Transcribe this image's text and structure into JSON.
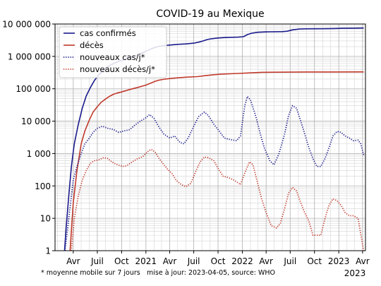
{
  "chart_data": {
    "type": "line",
    "title": "COVID-19 au Mexique",
    "xlabel": "",
    "ylabel": "",
    "yscale": "log",
    "ylim": [
      1,
      10000000
    ],
    "xlim": [
      "2020-01-23",
      "2023-04-12"
    ],
    "grid": true,
    "legend_position": "top-left",
    "x_ticks": [
      {
        "date": "2020-04-01",
        "label": "Avr"
      },
      {
        "date": "2020-07-01",
        "label": "Juil"
      },
      {
        "date": "2020-10-01",
        "label": "Oct"
      },
      {
        "date": "2021-01-01",
        "label": "2021"
      },
      {
        "date": "2021-04-01",
        "label": "Avr"
      },
      {
        "date": "2021-07-01",
        "label": "Juil"
      },
      {
        "date": "2021-10-01",
        "label": "Oct"
      },
      {
        "date": "2022-01-01",
        "label": "2022"
      },
      {
        "date": "2022-04-01",
        "label": "Avr"
      },
      {
        "date": "2022-07-01",
        "label": "Juil"
      },
      {
        "date": "2022-10-01",
        "label": "Oct"
      },
      {
        "date": "2023-01-01",
        "label": "2023"
      },
      {
        "date": "2023-04-01",
        "label": "Avr"
      }
    ],
    "x_corner_label": "2023",
    "y_ticks": [
      {
        "value": 1,
        "label": "1"
      },
      {
        "value": 10,
        "label": "10"
      },
      {
        "value": 100,
        "label": "100"
      },
      {
        "value": 1000,
        "label": "1 000"
      },
      {
        "value": 10000,
        "label": "10 000"
      },
      {
        "value": 100000,
        "label": "100 000"
      },
      {
        "value": 1000000,
        "label": "1 000 000"
      },
      {
        "value": 10000000,
        "label": "10 000 000"
      }
    ],
    "footnote_left": "* moyenne mobile sur 7 jours",
    "footnote_right": "mise à jour: 2023-04-05, source: WHO",
    "series": [
      {
        "name": "cas confirmés",
        "color": "#1a1a8c",
        "style": "solid",
        "points": [
          [
            "2020-02-28",
            1
          ],
          [
            "2020-03-05",
            5
          ],
          [
            "2020-03-15",
            50
          ],
          [
            "2020-03-25",
            400
          ],
          [
            "2020-04-05",
            2000
          ],
          [
            "2020-04-20",
            8000
          ],
          [
            "2020-05-05",
            25000
          ],
          [
            "2020-05-20",
            60000
          ],
          [
            "2020-06-05",
            110000
          ],
          [
            "2020-06-20",
            180000
          ],
          [
            "2020-07-05",
            260000
          ],
          [
            "2020-07-20",
            350000
          ],
          [
            "2020-08-05",
            450000
          ],
          [
            "2020-08-20",
            540000
          ],
          [
            "2020-09-05",
            630000
          ],
          [
            "2020-09-20",
            700000
          ],
          [
            "2020-10-05",
            770000
          ],
          [
            "2020-10-20",
            860000
          ],
          [
            "2020-11-05",
            950000
          ],
          [
            "2020-11-20",
            1020000
          ],
          [
            "2020-12-05",
            1150000
          ],
          [
            "2020-12-20",
            1300000
          ],
          [
            "2021-01-05",
            1500000
          ],
          [
            "2021-01-20",
            1700000
          ],
          [
            "2021-02-05",
            1900000
          ],
          [
            "2021-02-20",
            2050000
          ],
          [
            "2021-03-05",
            2130000
          ],
          [
            "2021-04-01",
            2240000
          ],
          [
            "2021-05-01",
            2360000
          ],
          [
            "2021-06-01",
            2430000
          ],
          [
            "2021-07-01",
            2560000
          ],
          [
            "2021-07-20",
            2750000
          ],
          [
            "2021-08-05",
            3000000
          ],
          [
            "2021-08-20",
            3300000
          ],
          [
            "2021-09-05",
            3500000
          ],
          [
            "2021-10-01",
            3700000
          ],
          [
            "2021-11-01",
            3830000
          ],
          [
            "2021-12-15",
            3930000
          ],
          [
            "2022-01-05",
            4050000
          ],
          [
            "2022-01-20",
            4700000
          ],
          [
            "2022-02-05",
            5200000
          ],
          [
            "2022-03-01",
            5550000
          ],
          [
            "2022-04-01",
            5700000
          ],
          [
            "2022-06-01",
            5800000
          ],
          [
            "2022-06-20",
            6000000
          ],
          [
            "2022-07-10",
            6600000
          ],
          [
            "2022-08-05",
            7000000
          ],
          [
            "2022-09-01",
            7100000
          ],
          [
            "2022-11-01",
            7150000
          ],
          [
            "2022-12-15",
            7250000
          ],
          [
            "2023-01-15",
            7350000
          ],
          [
            "2023-03-01",
            7450000
          ],
          [
            "2023-04-05",
            7500000
          ]
        ]
      },
      {
        "name": "décès",
        "color": "#c0392b",
        "style": "solid",
        "points": [
          [
            "2020-03-20",
            1
          ],
          [
            "2020-04-01",
            30
          ],
          [
            "2020-04-15",
            300
          ],
          [
            "2020-05-01",
            2000
          ],
          [
            "2020-05-15",
            5000
          ],
          [
            "2020-06-01",
            11000
          ],
          [
            "2020-06-15",
            19000
          ],
          [
            "2020-07-01",
            28000
          ],
          [
            "2020-07-15",
            38000
          ],
          [
            "2020-08-01",
            48000
          ],
          [
            "2020-08-15",
            58000
          ],
          [
            "2020-09-01",
            68000
          ],
          [
            "2020-09-15",
            74000
          ],
          [
            "2020-10-01",
            80000
          ],
          [
            "2020-11-01",
            95000
          ],
          [
            "2020-12-01",
            110000
          ],
          [
            "2021-01-01",
            130000
          ],
          [
            "2021-01-20",
            150000
          ],
          [
            "2021-02-05",
            170000
          ],
          [
            "2021-02-20",
            185000
          ],
          [
            "2021-03-15",
            200000
          ],
          [
            "2021-04-15",
            213000
          ],
          [
            "2021-06-01",
            228000
          ],
          [
            "2021-07-15",
            237000
          ],
          [
            "2021-08-15",
            255000
          ],
          [
            "2021-09-15",
            272000
          ],
          [
            "2021-10-15",
            285000
          ],
          [
            "2021-12-15",
            298000
          ],
          [
            "2022-02-01",
            310000
          ],
          [
            "2022-03-15",
            322000
          ],
          [
            "2022-06-01",
            325000
          ],
          [
            "2022-09-01",
            330000
          ],
          [
            "2022-12-01",
            331000
          ],
          [
            "2023-04-05",
            333000
          ]
        ]
      },
      {
        "name": "nouveaux cas/j*",
        "color": "#1a1a8c",
        "style": "dotted",
        "points": [
          [
            "2020-03-01",
            1
          ],
          [
            "2020-03-15",
            10
          ],
          [
            "2020-04-01",
            150
          ],
          [
            "2020-04-15",
            400
          ],
          [
            "2020-05-01",
            1000
          ],
          [
            "2020-05-15",
            2000
          ],
          [
            "2020-06-01",
            3000
          ],
          [
            "2020-06-15",
            4500
          ],
          [
            "2020-07-01",
            6000
          ],
          [
            "2020-07-20",
            7000
          ],
          [
            "2020-08-10",
            6000
          ],
          [
            "2020-09-01",
            5500
          ],
          [
            "2020-09-20",
            4500
          ],
          [
            "2020-10-10",
            5000
          ],
          [
            "2020-11-01",
            5500
          ],
          [
            "2020-11-20",
            7500
          ],
          [
            "2020-12-10",
            10000
          ],
          [
            "2020-12-28",
            12000
          ],
          [
            "2021-01-15",
            16000
          ],
          [
            "2021-02-01",
            12000
          ],
          [
            "2021-02-20",
            6500
          ],
          [
            "2021-03-10",
            4000
          ],
          [
            "2021-04-01",
            3000
          ],
          [
            "2021-04-20",
            3500
          ],
          [
            "2021-05-10",
            2200
          ],
          [
            "2021-05-25",
            2000
          ],
          [
            "2021-06-10",
            3000
          ],
          [
            "2021-07-01",
            7000
          ],
          [
            "2021-07-20",
            14000
          ],
          [
            "2021-08-10",
            19000
          ],
          [
            "2021-08-25",
            15000
          ],
          [
            "2021-09-15",
            8000
          ],
          [
            "2021-10-05",
            5000
          ],
          [
            "2021-10-25",
            3000
          ],
          [
            "2021-11-15",
            2700
          ],
          [
            "2021-12-10",
            2500
          ],
          [
            "2021-12-25",
            3500
          ],
          [
            "2022-01-10",
            30000
          ],
          [
            "2022-01-20",
            58000
          ],
          [
            "2022-02-01",
            45000
          ],
          [
            "2022-02-20",
            15000
          ],
          [
            "2022-03-10",
            4000
          ],
          [
            "2022-03-25",
            1500
          ],
          [
            "2022-04-15",
            600
          ],
          [
            "2022-05-01",
            450
          ],
          [
            "2022-05-20",
            1000
          ],
          [
            "2022-06-10",
            4000
          ],
          [
            "2022-06-25",
            15000
          ],
          [
            "2022-07-10",
            30000
          ],
          [
            "2022-07-25",
            25000
          ],
          [
            "2022-08-10",
            10000
          ],
          [
            "2022-08-25",
            4000
          ],
          [
            "2022-09-10",
            1500
          ],
          [
            "2022-09-25",
            700
          ],
          [
            "2022-10-10",
            400
          ],
          [
            "2022-10-25",
            400
          ],
          [
            "2022-11-10",
            700
          ],
          [
            "2022-11-25",
            1500
          ],
          [
            "2022-12-10",
            3500
          ],
          [
            "2022-12-25",
            4800
          ],
          [
            "2023-01-10",
            4500
          ],
          [
            "2023-01-25",
            3500
          ],
          [
            "2023-02-10",
            3000
          ],
          [
            "2023-02-25",
            2500
          ],
          [
            "2023-03-15",
            2600
          ],
          [
            "2023-03-25",
            2000
          ],
          [
            "2023-04-05",
            900
          ]
        ]
      },
      {
        "name": "nouveaux décès/j*",
        "color": "#c0392b",
        "style": "dotted",
        "points": [
          [
            "2020-03-25",
            1
          ],
          [
            "2020-04-05",
            10
          ],
          [
            "2020-04-20",
            50
          ],
          [
            "2020-05-05",
            150
          ],
          [
            "2020-05-20",
            300
          ],
          [
            "2020-06-05",
            500
          ],
          [
            "2020-06-20",
            600
          ],
          [
            "2020-07-10",
            650
          ],
          [
            "2020-07-25",
            750
          ],
          [
            "2020-08-10",
            700
          ],
          [
            "2020-08-25",
            550
          ],
          [
            "2020-09-15",
            450
          ],
          [
            "2020-10-05",
            400
          ],
          [
            "2020-10-20",
            420
          ],
          [
            "2020-11-10",
            550
          ],
          [
            "2020-12-01",
            700
          ],
          [
            "2020-12-20",
            800
          ],
          [
            "2021-01-10",
            1200
          ],
          [
            "2021-01-22",
            1350
          ],
          [
            "2021-02-05",
            1100
          ],
          [
            "2021-02-20",
            700
          ],
          [
            "2021-03-10",
            450
          ],
          [
            "2021-03-25",
            320
          ],
          [
            "2021-04-10",
            240
          ],
          [
            "2021-04-25",
            150
          ],
          [
            "2021-05-15",
            110
          ],
          [
            "2021-06-01",
            95
          ],
          [
            "2021-06-20",
            120
          ],
          [
            "2021-07-10",
            300
          ],
          [
            "2021-07-25",
            550
          ],
          [
            "2021-08-10",
            780
          ],
          [
            "2021-08-25",
            750
          ],
          [
            "2021-09-15",
            600
          ],
          [
            "2021-10-01",
            350
          ],
          [
            "2021-10-20",
            200
          ],
          [
            "2021-11-10",
            180
          ],
          [
            "2021-12-01",
            150
          ],
          [
            "2021-12-25",
            110
          ],
          [
            "2022-01-10",
            250
          ],
          [
            "2022-01-28",
            550
          ],
          [
            "2022-02-10",
            450
          ],
          [
            "2022-02-25",
            150
          ],
          [
            "2022-03-15",
            40
          ],
          [
            "2022-04-01",
            15
          ],
          [
            "2022-04-20",
            6
          ],
          [
            "2022-05-10",
            5
          ],
          [
            "2022-05-25",
            7
          ],
          [
            "2022-06-10",
            20
          ],
          [
            "2022-06-25",
            60
          ],
          [
            "2022-07-10",
            90
          ],
          [
            "2022-07-25",
            70
          ],
          [
            "2022-08-10",
            30
          ],
          [
            "2022-08-25",
            15
          ],
          [
            "2022-09-10",
            8
          ],
          [
            "2022-09-25",
            3
          ],
          [
            "2022-10-10",
            3
          ],
          [
            "2022-10-25",
            3
          ],
          [
            "2022-11-10",
            10
          ],
          [
            "2022-11-25",
            25
          ],
          [
            "2022-12-10",
            40
          ],
          [
            "2022-12-25",
            35
          ],
          [
            "2023-01-10",
            25
          ],
          [
            "2023-01-25",
            15
          ],
          [
            "2023-02-10",
            12
          ],
          [
            "2023-02-25",
            12
          ],
          [
            "2023-03-15",
            10
          ],
          [
            "2023-04-05",
            1
          ]
        ]
      }
    ]
  }
}
